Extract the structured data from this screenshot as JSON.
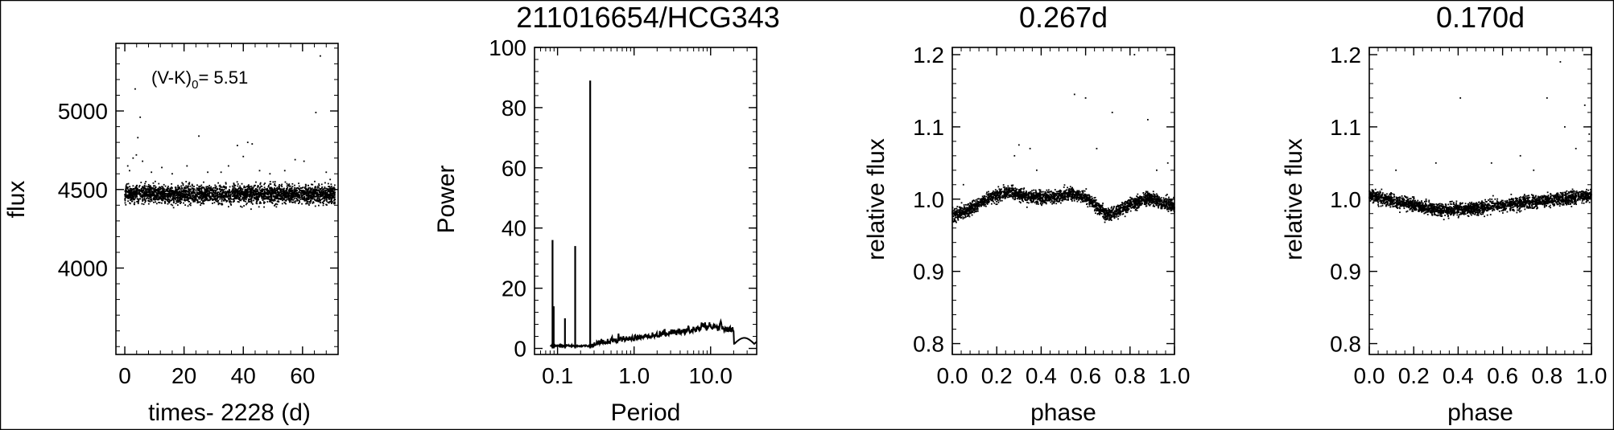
{
  "chart_data": [
    {
      "type": "scatter",
      "title": "",
      "xlabel": "times- 2228 (d)",
      "ylabel": "flux",
      "xlim": [
        -3,
        72
      ],
      "ylim": [
        3450,
        5430
      ],
      "xticks": [
        0,
        20,
        40,
        60
      ],
      "yticks": [
        4000,
        4500,
        5000
      ],
      "annotation": {
        "prefix": "(V-K)",
        "sub": "0",
        "suffix": "= 5.51"
      },
      "band": {
        "x_range": [
          0,
          71
        ],
        "center": 4470,
        "spread": 85
      },
      "points": [
        [
          1.0,
          4650
        ],
        [
          1.6,
          4620
        ],
        [
          2.8,
          4700
        ],
        [
          3.5,
          5140
        ],
        [
          3.9,
          4720
        ],
        [
          4.4,
          4830
        ],
        [
          5.2,
          4960
        ],
        [
          6.0,
          4680
        ],
        [
          9.0,
          4610
        ],
        [
          12.5,
          4640
        ],
        [
          16.0,
          4600
        ],
        [
          21.0,
          4650
        ],
        [
          25.0,
          4840
        ],
        [
          28.0,
          4610
        ],
        [
          32.5,
          4610
        ],
        [
          35.0,
          4650
        ],
        [
          38.0,
          4780
        ],
        [
          40.0,
          4710
        ],
        [
          41.5,
          4800
        ],
        [
          43.0,
          4790
        ],
        [
          45.5,
          4620
        ],
        [
          49.0,
          4600
        ],
        [
          54.0,
          4620
        ],
        [
          57.5,
          4690
        ],
        [
          60.5,
          4680
        ],
        [
          64.5,
          4990
        ],
        [
          66.0,
          5350
        ],
        [
          68.0,
          4610
        ]
      ]
    },
    {
      "type": "line",
      "title": "211016654/HCG343",
      "xlabel": "Period",
      "ylabel": "Power",
      "xscale": "log",
      "xlim": [
        0.05,
        40
      ],
      "ylim": [
        -2,
        100
      ],
      "xticks": [
        0.1,
        1.0,
        10.0
      ],
      "xtick_labels": [
        "0.1",
        "1.0",
        "10.0"
      ],
      "yticks": [
        0,
        20,
        40,
        60,
        80,
        100
      ],
      "peaks": [
        {
          "period": 0.086,
          "power": 36
        },
        {
          "period": 0.089,
          "power": 14
        },
        {
          "period": 0.125,
          "power": 10
        },
        {
          "period": 0.17,
          "power": 34
        },
        {
          "period": 0.267,
          "power": 89
        }
      ]
    },
    {
      "type": "scatter",
      "title": "0.267d",
      "xlabel": "phase",
      "ylabel": "relative flux",
      "xlim": [
        0,
        1
      ],
      "ylim": [
        0.785,
        1.21
      ],
      "xticks": [
        0.0,
        0.2,
        0.4,
        0.6,
        0.8,
        1.0
      ],
      "xtick_labels": [
        "0.0",
        "0.2",
        "0.4",
        "0.6",
        "0.8",
        "1.0"
      ],
      "yticks": [
        0.8,
        0.9,
        1.0,
        1.1,
        1.2
      ],
      "curve": [
        [
          0.0,
          0.978
        ],
        [
          0.08,
          0.985
        ],
        [
          0.15,
          1.0
        ],
        [
          0.25,
          1.01
        ],
        [
          0.35,
          1.003
        ],
        [
          0.45,
          1.002
        ],
        [
          0.55,
          1.008
        ],
        [
          0.62,
          0.998
        ],
        [
          0.7,
          0.977
        ],
        [
          0.78,
          0.99
        ],
        [
          0.88,
          1.002
        ],
        [
          1.0,
          0.99
        ]
      ],
      "outliers": [
        [
          0.05,
          1.02
        ],
        [
          0.28,
          1.06
        ],
        [
          0.3,
          1.075
        ],
        [
          0.35,
          1.07
        ],
        [
          0.38,
          1.04
        ],
        [
          0.55,
          1.145
        ],
        [
          0.6,
          1.14
        ],
        [
          0.65,
          1.07
        ],
        [
          0.72,
          1.12
        ],
        [
          0.82,
          1.2
        ],
        [
          0.88,
          1.11
        ],
        [
          0.92,
          1.04
        ],
        [
          0.97,
          1.05
        ]
      ]
    },
    {
      "type": "scatter",
      "title": "0.170d",
      "xlabel": "phase",
      "ylabel": "relative flux",
      "xlim": [
        0,
        1
      ],
      "ylim": [
        0.785,
        1.21
      ],
      "xticks": [
        0.0,
        0.2,
        0.4,
        0.6,
        0.8,
        1.0
      ],
      "xtick_labels": [
        "0.0",
        "0.2",
        "0.4",
        "0.6",
        "0.8",
        "1.0"
      ],
      "yticks": [
        0.8,
        0.9,
        1.0,
        1.1,
        1.2
      ],
      "curve": [
        [
          0.0,
          1.005
        ],
        [
          0.15,
          0.995
        ],
        [
          0.3,
          0.985
        ],
        [
          0.4,
          0.985
        ],
        [
          0.55,
          0.99
        ],
        [
          0.7,
          0.995
        ],
        [
          0.85,
          1.0
        ],
        [
          1.0,
          1.005
        ]
      ],
      "outliers": [
        [
          0.12,
          1.04
        ],
        [
          0.3,
          1.05
        ],
        [
          0.41,
          1.14
        ],
        [
          0.55,
          1.05
        ],
        [
          0.68,
          1.06
        ],
        [
          0.74,
          1.04
        ],
        [
          0.8,
          1.14
        ],
        [
          0.86,
          1.19
        ],
        [
          0.88,
          1.1
        ],
        [
          0.93,
          1.07
        ],
        [
          0.97,
          1.13
        ],
        [
          0.99,
          1.09
        ]
      ]
    }
  ]
}
